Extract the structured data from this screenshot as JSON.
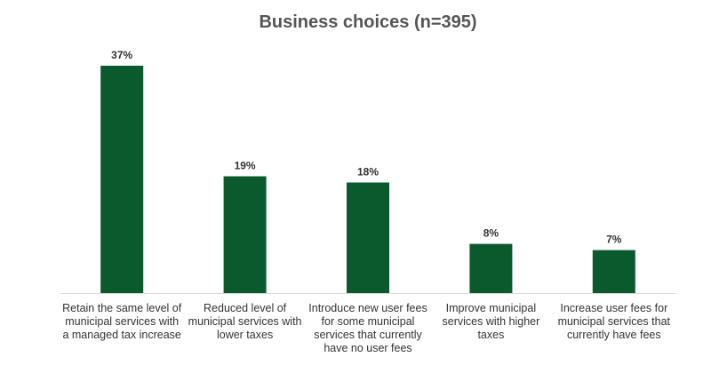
{
  "chart_data": {
    "type": "bar",
    "title": "Business choices (n=395)",
    "categories": [
      "Retain the same level of municipal services with a managed tax increase",
      "Reduced level of municipal services with lower taxes",
      "Introduce new user fees for some municipal services that currently have no user fees",
      "Improve municipal services with higher taxes",
      "Increase user fees for municipal services that currently have fees"
    ],
    "values": [
      37,
      19,
      18,
      8,
      7
    ],
    "data_labels": [
      "37%",
      "19%",
      "18%",
      "8%",
      "7%"
    ],
    "unit": "%",
    "ylim": [
      0,
      40
    ],
    "grid": false,
    "legend": "none",
    "bar_color": "#0b5a2d",
    "axis_color": "#d9d9d9"
  }
}
